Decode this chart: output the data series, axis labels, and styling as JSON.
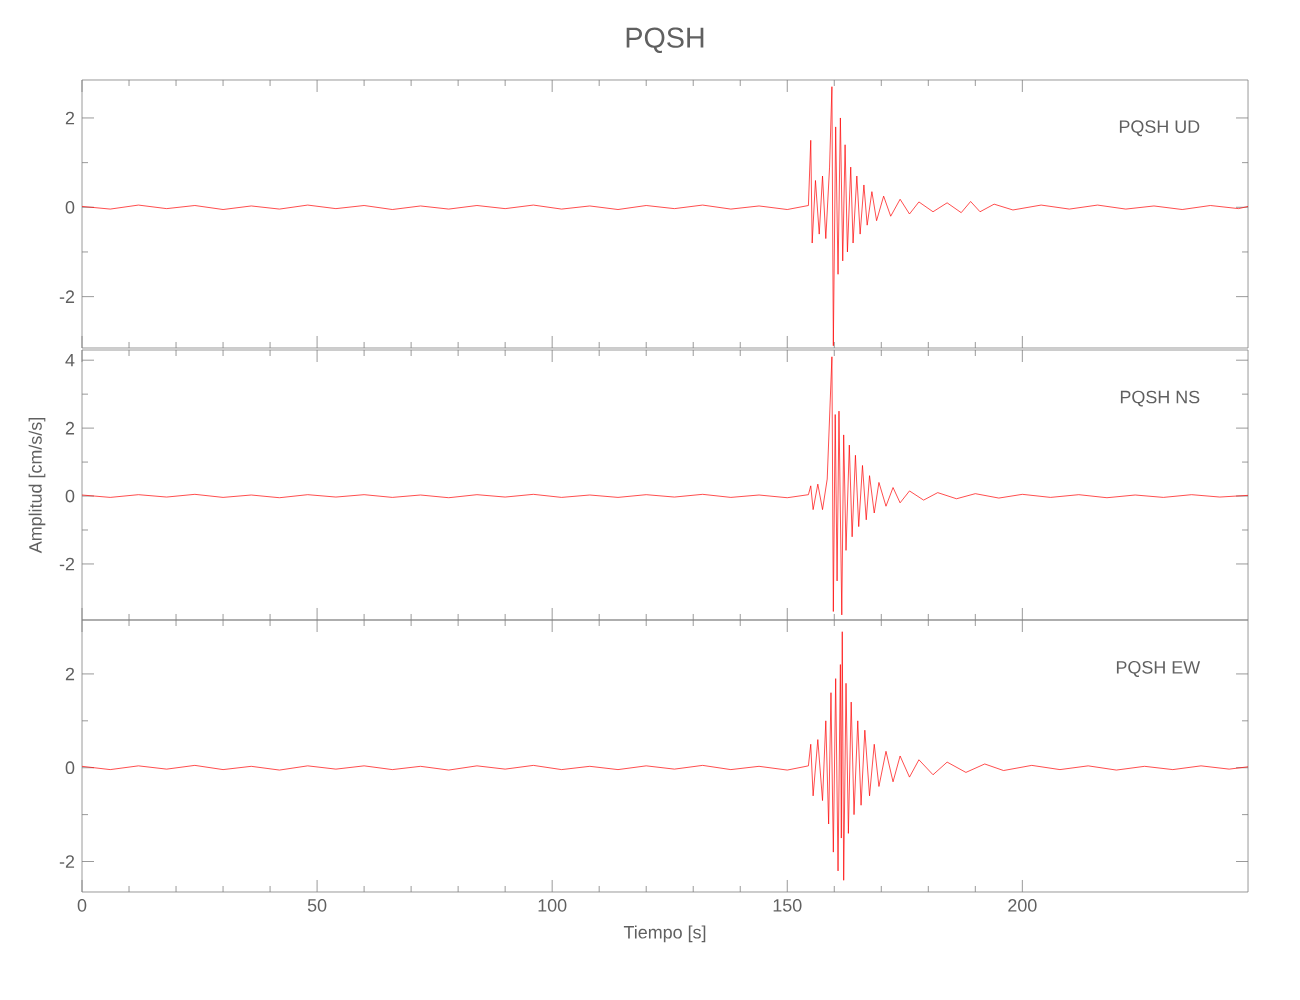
{
  "chart_data": [
    {
      "type": "line",
      "title": "PQSH",
      "annotations": [
        "PQSH UD"
      ],
      "color": "#ff0000",
      "xlim": [
        0,
        248
      ],
      "xticks": [
        0,
        50,
        100,
        150,
        200
      ],
      "ylim": [
        -3.15,
        2.85
      ],
      "yticks": [
        -2,
        0,
        2
      ],
      "tick_labels": "y",
      "x": [
        0,
        6,
        12,
        18,
        24,
        30,
        36,
        42,
        48,
        54,
        60,
        66,
        72,
        78,
        84,
        90,
        96,
        102,
        108,
        114,
        120,
        126,
        132,
        138,
        144,
        150,
        154.5,
        155,
        155.3,
        156,
        156.8,
        157.5,
        158.2,
        159,
        159.5,
        159.8,
        160.3,
        160.8,
        161.3,
        161.8,
        162.3,
        162.8,
        163.5,
        164,
        164.8,
        165.5,
        166.3,
        167,
        168,
        169,
        170.5,
        172,
        174,
        176,
        178,
        181,
        184,
        187,
        189,
        191,
        194,
        198,
        204,
        210,
        216,
        222,
        228,
        234,
        240,
        246,
        248
      ],
      "values": [
        0.02,
        -0.04,
        0.05,
        -0.03,
        0.04,
        -0.05,
        0.03,
        -0.04,
        0.05,
        -0.03,
        0.04,
        -0.05,
        0.03,
        -0.04,
        0.04,
        -0.03,
        0.05,
        -0.04,
        0.03,
        -0.05,
        0.04,
        -0.03,
        0.05,
        -0.04,
        0.03,
        -0.05,
        0.04,
        1.5,
        -0.8,
        0.6,
        -0.6,
        0.7,
        -0.7,
        0.9,
        2.7,
        -3.1,
        1.8,
        -1.5,
        2.0,
        -1.2,
        1.4,
        -1.0,
        0.9,
        -0.8,
        0.7,
        -0.6,
        0.5,
        -0.4,
        0.35,
        -0.3,
        0.25,
        -0.2,
        0.18,
        -0.15,
        0.12,
        -0.1,
        0.1,
        -0.12,
        0.13,
        -0.1,
        0.07,
        -0.06,
        0.05,
        -0.04,
        0.05,
        -0.04,
        0.03,
        -0.05,
        0.04,
        -0.03,
        0.02
      ]
    },
    {
      "type": "line",
      "ylabel": "Amplitud [cm/s/s]",
      "annotations": [
        "PQSH NS"
      ],
      "color": "#ff0000",
      "xlim": [
        0,
        248
      ],
      "xticks": [
        0,
        50,
        100,
        150,
        200
      ],
      "ylim": [
        -3.65,
        4.3
      ],
      "yticks": [
        -2,
        0,
        2,
        4
      ],
      "tick_labels": "y",
      "x": [
        0,
        6,
        12,
        18,
        24,
        30,
        36,
        42,
        48,
        54,
        60,
        66,
        72,
        78,
        84,
        90,
        96,
        102,
        108,
        114,
        120,
        126,
        132,
        138,
        144,
        150,
        154.5,
        155,
        155.5,
        156.5,
        157.5,
        158.5,
        159.5,
        159.8,
        160.2,
        160.6,
        161,
        161.6,
        162,
        162.5,
        163.2,
        163.8,
        164.5,
        165.2,
        166,
        166.8,
        167.5,
        168.5,
        169.5,
        171,
        172.5,
        174,
        176,
        179,
        182,
        186,
        190,
        195,
        200,
        206,
        212,
        218,
        224,
        230,
        236,
        242,
        248
      ],
      "values": [
        0.03,
        -0.04,
        0.04,
        -0.03,
        0.05,
        -0.04,
        0.03,
        -0.05,
        0.04,
        -0.03,
        0.04,
        -0.04,
        0.03,
        -0.05,
        0.04,
        -0.03,
        0.05,
        -0.04,
        0.03,
        -0.04,
        0.04,
        -0.03,
        0.05,
        -0.04,
        0.03,
        -0.05,
        0.04,
        0.3,
        -0.4,
        0.35,
        -0.4,
        0.5,
        4.1,
        -3.4,
        2.4,
        -2.5,
        2.5,
        -3.5,
        1.8,
        -1.6,
        1.5,
        -1.2,
        1.2,
        -0.9,
        0.9,
        -0.7,
        0.6,
        -0.5,
        0.4,
        -0.3,
        0.25,
        -0.2,
        0.15,
        -0.12,
        0.1,
        -0.08,
        0.07,
        -0.06,
        0.05,
        -0.04,
        0.04,
        -0.05,
        0.03,
        -0.04,
        0.04,
        -0.03,
        0.02
      ]
    },
    {
      "type": "line",
      "xlabel": "Tiempo [s]",
      "annotations": [
        "PQSH EW"
      ],
      "color": "#ff0000",
      "xlim": [
        0,
        248
      ],
      "xticks": [
        0,
        50,
        100,
        150,
        200
      ],
      "ylim": [
        -2.65,
        3.15
      ],
      "yticks": [
        -2,
        0,
        2
      ],
      "x": [
        0,
        6,
        12,
        18,
        24,
        30,
        36,
        42,
        48,
        54,
        60,
        66,
        72,
        78,
        84,
        90,
        96,
        102,
        108,
        114,
        120,
        126,
        132,
        138,
        144,
        150,
        154.5,
        155,
        155.5,
        156.5,
        157.5,
        158.2,
        158.8,
        159.3,
        159.8,
        160.3,
        160.8,
        161.3,
        161.5,
        161.7,
        162,
        162.5,
        163,
        163.6,
        164.2,
        165,
        165.7,
        166.5,
        167.5,
        168.5,
        169.5,
        171,
        172.5,
        174,
        176,
        178,
        181,
        184,
        188,
        192,
        196,
        202,
        208,
        214,
        220,
        226,
        232,
        238,
        244,
        248
      ],
      "values": [
        0.03,
        -0.04,
        0.04,
        -0.03,
        0.05,
        -0.04,
        0.03,
        -0.05,
        0.04,
        -0.03,
        0.04,
        -0.04,
        0.03,
        -0.05,
        0.04,
        -0.03,
        0.05,
        -0.04,
        0.03,
        -0.04,
        0.04,
        -0.03,
        0.05,
        -0.04,
        0.03,
        -0.05,
        0.04,
        0.5,
        -0.6,
        0.6,
        -0.7,
        1.0,
        -1.2,
        1.6,
        -1.8,
        1.9,
        -2.2,
        2.2,
        -1.5,
        2.9,
        -2.4,
        1.8,
        -1.4,
        1.4,
        -1.0,
        1.0,
        -0.8,
        0.8,
        -0.6,
        0.5,
        -0.4,
        0.35,
        -0.3,
        0.25,
        -0.2,
        0.17,
        -0.15,
        0.12,
        -0.1,
        0.08,
        -0.06,
        0.05,
        -0.04,
        0.04,
        -0.05,
        0.03,
        -0.04,
        0.04,
        -0.03,
        0.02
      ]
    }
  ]
}
